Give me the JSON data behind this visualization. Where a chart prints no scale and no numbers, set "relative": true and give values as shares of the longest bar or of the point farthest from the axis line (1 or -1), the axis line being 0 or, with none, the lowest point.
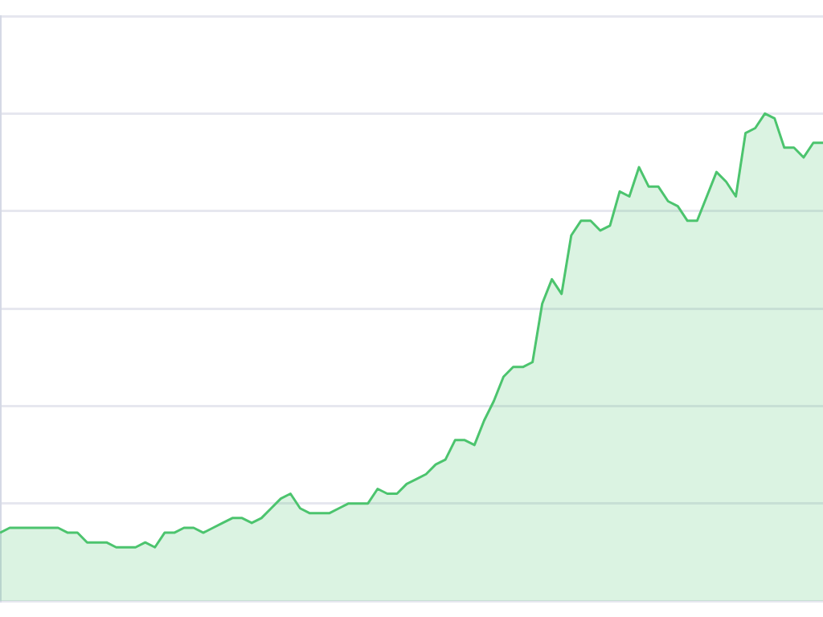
{
  "chart_data": {
    "type": "area",
    "relative": true,
    "grid": "y",
    "legend": false,
    "marker": "none",
    "line_style": "solid",
    "categories": [
      null,
      null,
      null,
      null,
      null,
      null,
      null,
      null,
      null,
      null,
      null,
      null,
      null,
      null,
      null,
      null,
      null,
      null,
      null,
      null,
      null,
      null,
      null,
      null,
      null,
      null,
      null,
      null,
      null,
      null,
      null,
      null,
      null,
      null,
      null,
      null,
      null,
      null,
      null,
      null,
      null,
      null,
      null,
      null,
      null,
      null,
      null,
      null,
      null,
      null,
      null,
      null,
      null,
      null,
      null,
      null,
      null,
      null,
      null,
      null,
      null,
      null,
      null,
      null,
      null,
      null,
      null,
      null,
      null,
      null,
      null,
      null,
      null,
      null,
      null,
      null,
      null,
      null,
      null,
      null,
      null,
      null,
      null,
      null,
      null,
      null
    ],
    "series": [
      {
        "color": "#4cc46e",
        "values": [
          0.14,
          0.15,
          0.15,
          0.15,
          0.15,
          0.15,
          0.15,
          0.14,
          0.14,
          0.12,
          0.12,
          0.12,
          0.11,
          0.11,
          0.11,
          0.12,
          0.11,
          0.14,
          0.14,
          0.15,
          0.15,
          0.14,
          0.15,
          0.16,
          0.17,
          0.17,
          0.16,
          0.17,
          0.19,
          0.21,
          0.22,
          0.19,
          0.18,
          0.18,
          0.18,
          0.19,
          0.2,
          0.2,
          0.2,
          0.23,
          0.22,
          0.22,
          0.24,
          0.25,
          0.26,
          0.28,
          0.29,
          0.33,
          0.33,
          0.32,
          0.37,
          0.41,
          0.46,
          0.48,
          0.48,
          0.49,
          0.61,
          0.66,
          0.63,
          0.75,
          0.78,
          0.78,
          0.76,
          0.77,
          0.84,
          0.83,
          0.89,
          0.85,
          0.85,
          0.82,
          0.81,
          0.78,
          0.78,
          0.83,
          0.88,
          0.86,
          0.83,
          0.96,
          0.97,
          1,
          0.99,
          0.93,
          0.93,
          0.91,
          0.94,
          0.94
        ]
      }
    ]
  }
}
